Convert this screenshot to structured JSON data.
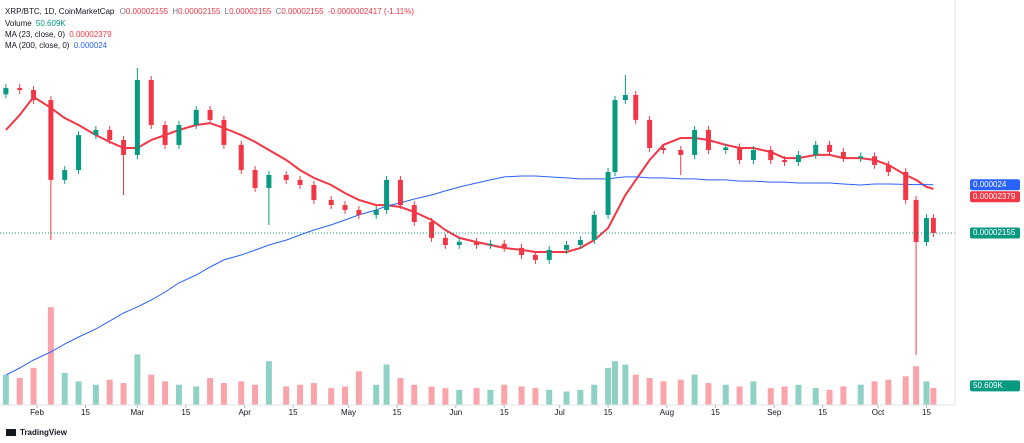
{
  "chart_data": {
    "type": "candlestick",
    "title": "XRP/BTC, 1D, CoinMarketCap",
    "header": {
      "ohlc": [
        {
          "label": "O",
          "value": 2.155e-05
        },
        {
          "label": "H",
          "value": 2.155e-05
        },
        {
          "label": "L",
          "value": 2.155e-05
        },
        {
          "label": "C",
          "value": 2.155e-05
        }
      ],
      "change": "-0.0000002417 (-1.11%)"
    },
    "up_color": "#089981",
    "down_color": "#f23645",
    "x": [
      23,
      27,
      31,
      36,
      40,
      44,
      49,
      53,
      57,
      61,
      65,
      69,
      73,
      78,
      82,
      86,
      91,
      95,
      99,
      104,
      108,
      112,
      117,
      121,
      125,
      130,
      133,
      137,
      141,
      146,
      150,
      154,
      159,
      163,
      167,
      172,
      176,
      180,
      185,
      189,
      193,
      197,
      199,
      202,
      205,
      209,
      213,
      218,
      222,
      226,
      231,
      235,
      239,
      244,
      248,
      252,
      257,
      261,
      265,
      270,
      274,
      278,
      283,
      286,
      289,
      291
    ],
    "open": [
      2.86e-05,
      2.892e-05,
      2.882e-05,
      2.831e-05,
      2.425e-05,
      2.475e-05,
      2.653e-05,
      2.679e-05,
      2.628e-05,
      2.552e-05,
      2.933e-05,
      2.704e-05,
      2.603e-05,
      2.704e-05,
      2.781e-05,
      2.73e-05,
      2.603e-05,
      2.475e-05,
      2.384e-05,
      2.45e-05,
      2.425e-05,
      2.399e-05,
      2.323e-05,
      2.297e-05,
      2.272e-05,
      2.247e-05,
      2.272e-05,
      2.425e-05,
      2.297e-05,
      2.211e-05,
      2.13e-05,
      2.094e-05,
      2.11e-05,
      2.094e-05,
      2.1e-05,
      2.079e-05,
      2.043e-05,
      2.018e-05,
      2.069e-05,
      2.094e-05,
      2.119e-05,
      2.247e-05,
      2.465e-05,
      2.831e-05,
      2.857e-05,
      2.73e-05,
      2.587e-05,
      2.577e-05,
      2.552e-05,
      2.679e-05,
      2.577e-05,
      2.59e-05,
      2.526e-05,
      2.577e-05,
      2.526e-05,
      2.516e-05,
      2.552e-05,
      2.603e-05,
      2.567e-05,
      2.536e-05,
      2.545e-05,
      2.501e-05,
      2.465e-05,
      2.323e-05,
      2.109e-05,
      2.231e-05
    ],
    "high": [
      2.912e-05,
      2.912e-05,
      2.902e-05,
      2.851e-05,
      2.495e-05,
      2.673e-05,
      2.699e-05,
      2.699e-05,
      2.648e-05,
      2.994e-05,
      2.953e-05,
      2.724e-05,
      2.724e-05,
      2.801e-05,
      2.801e-05,
      2.75e-05,
      2.623e-05,
      2.495e-05,
      2.47e-05,
      2.47e-05,
      2.445e-05,
      2.419e-05,
      2.343e-05,
      2.317e-05,
      2.292e-05,
      2.292e-05,
      2.445e-05,
      2.445e-05,
      2.317e-05,
      2.231e-05,
      2.15e-05,
      2.13e-05,
      2.13e-05,
      2.12e-05,
      2.12e-05,
      2.099e-05,
      2.063e-05,
      2.089e-05,
      2.114e-05,
      2.139e-05,
      2.267e-05,
      2.485e-05,
      2.851e-05,
      2.959e-05,
      2.877e-05,
      2.75e-05,
      2.607e-05,
      2.597e-05,
      2.699e-05,
      2.699e-05,
      2.61e-05,
      2.61e-05,
      2.597e-05,
      2.597e-05,
      2.546e-05,
      2.572e-05,
      2.623e-05,
      2.623e-05,
      2.587e-05,
      2.565e-05,
      2.565e-05,
      2.521e-05,
      2.485e-05,
      2.343e-05,
      2.251e-05,
      2.251e-05
    ],
    "low": [
      2.84e-05,
      2.862e-05,
      2.811e-05,
      2.119e-05,
      2.405e-05,
      2.455e-05,
      2.633e-05,
      2.608e-05,
      2.348e-05,
      2.532e-05,
      2.684e-05,
      2.583e-05,
      2.583e-05,
      2.684e-05,
      2.71e-05,
      2.583e-05,
      2.455e-05,
      2.364e-05,
      2.196e-05,
      2.405e-05,
      2.379e-05,
      2.303e-05,
      2.277e-05,
      2.252e-05,
      2.227e-05,
      2.227e-05,
      2.252e-05,
      2.277e-05,
      2.191e-05,
      2.11e-05,
      2.074e-05,
      2.074e-05,
      2.074e-05,
      2.074e-05,
      2.059e-05,
      2.023e-05,
      1.998e-05,
      1.998e-05,
      2.049e-05,
      2.074e-05,
      2.099e-05,
      2.227e-05,
      2.445e-05,
      2.811e-05,
      2.71e-05,
      2.567e-05,
      2.557e-05,
      2.45e-05,
      2.532e-05,
      2.557e-05,
      2.557e-05,
      2.506e-05,
      2.506e-05,
      2.506e-05,
      2.496e-05,
      2.496e-05,
      2.532e-05,
      2.547e-05,
      2.516e-05,
      2.516e-05,
      2.481e-05,
      2.445e-05,
      2.303e-05,
      1.535e-05,
      2.089e-05,
      2.135e-05
    ],
    "close": [
      2.892e-05,
      2.882e-05,
      2.831e-05,
      2.425e-05,
      2.475e-05,
      2.653e-05,
      2.679e-05,
      2.628e-05,
      2.552e-05,
      2.933e-05,
      2.704e-05,
      2.603e-05,
      2.704e-05,
      2.781e-05,
      2.73e-05,
      2.603e-05,
      2.475e-05,
      2.384e-05,
      2.45e-05,
      2.425e-05,
      2.399e-05,
      2.323e-05,
      2.297e-05,
      2.272e-05,
      2.247e-05,
      2.272e-05,
      2.425e-05,
      2.297e-05,
      2.211e-05,
      2.13e-05,
      2.094e-05,
      2.11e-05,
      2.094e-05,
      2.1e-05,
      2.079e-05,
      2.043e-05,
      2.018e-05,
      2.069e-05,
      2.094e-05,
      2.119e-05,
      2.247e-05,
      2.465e-05,
      2.831e-05,
      2.857e-05,
      2.73e-05,
      2.587e-05,
      2.577e-05,
      2.552e-05,
      2.679e-05,
      2.577e-05,
      2.59e-05,
      2.526e-05,
      2.577e-05,
      2.526e-05,
      2.516e-05,
      2.552e-05,
      2.603e-05,
      2.567e-05,
      2.536e-05,
      2.545e-05,
      2.501e-05,
      2.465e-05,
      2.323e-05,
      2.109e-05,
      2.231e-05,
      2.155e-05
    ],
    "series": [
      {
        "name": "MA (23, close, 0)",
        "color": "#f23645",
        "values": [
          2.679e-05,
          2.755e-05,
          2.847e-05,
          2.791e-05,
          2.74e-05,
          2.704e-05,
          2.653e-05,
          2.618e-05,
          2.587e-05,
          2.587e-05,
          2.628e-05,
          2.653e-05,
          2.679e-05,
          2.704e-05,
          2.714e-05,
          2.689e-05,
          2.653e-05,
          2.618e-05,
          2.577e-05,
          2.526e-05,
          2.475e-05,
          2.435e-05,
          2.399e-05,
          2.358e-05,
          2.323e-05,
          2.297e-05,
          2.297e-05,
          2.287e-05,
          2.262e-05,
          2.221e-05,
          2.17e-05,
          2.13e-05,
          2.109e-05,
          2.094e-05,
          2.079e-05,
          2.069e-05,
          2.058e-05,
          2.058e-05,
          2.058e-05,
          2.079e-05,
          2.119e-05,
          2.18e-05,
          2.247e-05,
          2.348e-05,
          2.425e-05,
          2.526e-05,
          2.603e-05,
          2.638e-05,
          2.638e-05,
          2.628e-05,
          2.603e-05,
          2.587e-05,
          2.587e-05,
          2.567e-05,
          2.536e-05,
          2.536e-05,
          2.552e-05,
          2.552e-05,
          2.536e-05,
          2.536e-05,
          2.526e-05,
          2.501e-05,
          2.45e-05,
          2.425e-05,
          2.389e-05,
          2.379e-05
        ]
      },
      {
        "name": "MA (200, close, 0)",
        "color": "#2962ff",
        "values": [
          1.433e-05,
          1.468e-05,
          1.509e-05,
          1.55e-05,
          1.59e-05,
          1.626e-05,
          1.667e-05,
          1.707e-05,
          1.748e-05,
          1.779e-05,
          1.814e-05,
          1.855e-05,
          1.901e-05,
          1.941e-05,
          1.982e-05,
          2.018e-05,
          2.043e-05,
          2.068e-05,
          2.094e-05,
          2.119e-05,
          2.145e-05,
          2.17e-05,
          2.196e-05,
          2.221e-05,
          2.247e-05,
          2.272e-05,
          2.292e-05,
          2.308e-05,
          2.328e-05,
          2.348e-05,
          2.369e-05,
          2.389e-05,
          2.409e-05,
          2.425e-05,
          2.44e-05,
          2.445e-05,
          2.445e-05,
          2.44e-05,
          2.435e-05,
          2.43e-05,
          2.43e-05,
          2.43e-05,
          2.435e-05,
          2.44e-05,
          2.44e-05,
          2.435e-05,
          2.435e-05,
          2.43e-05,
          2.43e-05,
          2.425e-05,
          2.425e-05,
          2.419e-05,
          2.419e-05,
          2.414e-05,
          2.414e-05,
          2.409e-05,
          2.409e-05,
          2.409e-05,
          2.404e-05,
          2.399e-05,
          2.404e-05,
          2.404e-05,
          2.402e-05,
          2.401e-05,
          2.401e-05,
          2.4e-05
        ]
      }
    ],
    "volume": {
      "name": "Volume",
      "values": [
        90000,
        80000,
        110000,
        290000,
        95000,
        70000,
        60000,
        75000,
        65000,
        150000,
        90000,
        70000,
        60000,
        55000,
        80000,
        65000,
        70000,
        60000,
        130000,
        55000,
        60000,
        65000,
        50000,
        55000,
        100000,
        60000,
        120000,
        80000,
        60000,
        55000,
        50000,
        45000,
        50000,
        45000,
        60000,
        55000,
        50000,
        45000,
        40000,
        45000,
        60000,
        110000,
        130000,
        120000,
        90000,
        80000,
        70000,
        75000,
        90000,
        65000,
        60000,
        55000,
        70000,
        50000,
        55000,
        60000,
        50000,
        45000,
        55000,
        60000,
        70000,
        75000,
        85000,
        115000,
        70000,
        50609
      ],
      "value_labels": [
        null,
        null,
        null,
        null,
        null,
        null,
        null,
        null,
        null,
        null,
        null,
        null,
        null,
        null,
        null,
        null,
        null,
        null,
        null,
        null,
        null,
        null,
        null,
        null,
        null,
        null,
        null,
        null,
        null,
        null,
        null,
        null,
        null,
        null,
        null,
        null,
        null,
        null,
        null,
        null,
        null,
        null,
        null,
        null,
        null,
        null,
        null,
        null,
        null,
        null,
        null,
        null,
        null,
        null,
        null,
        null,
        null,
        null,
        null,
        null,
        null,
        null,
        null,
        null,
        null,
        "50.609K"
      ]
    },
    "xlim": [
      21.3,
      295.8
    ],
    "xticks": [
      {
        "value": 32,
        "label": "Feb"
      },
      {
        "value": 46,
        "label": "15"
      },
      {
        "value": 61,
        "label": "Mar"
      },
      {
        "value": 75,
        "label": "15"
      },
      {
        "value": 92,
        "label": "Apr"
      },
      {
        "value": 106,
        "label": "15"
      },
      {
        "value": 122,
        "label": "May"
      },
      {
        "value": 136,
        "label": "15"
      },
      {
        "value": 153,
        "label": "Jun"
      },
      {
        "value": 167,
        "label": "15"
      },
      {
        "value": 183,
        "label": "Jul"
      },
      {
        "value": 197,
        "label": "15"
      },
      {
        "value": 214,
        "label": "Aug"
      },
      {
        "value": 228,
        "label": "15"
      },
      {
        "value": 245,
        "label": "Sep"
      },
      {
        "value": 259,
        "label": "15"
      },
      {
        "value": 275,
        "label": "Oct"
      },
      {
        "value": 289,
        "label": "15"
      }
    ],
    "ylim": [
      1.28e-05,
      3.34e-05
    ],
    "y2lim": [
      0,
      1200000
    ],
    "footer": "TradingView"
  }
}
